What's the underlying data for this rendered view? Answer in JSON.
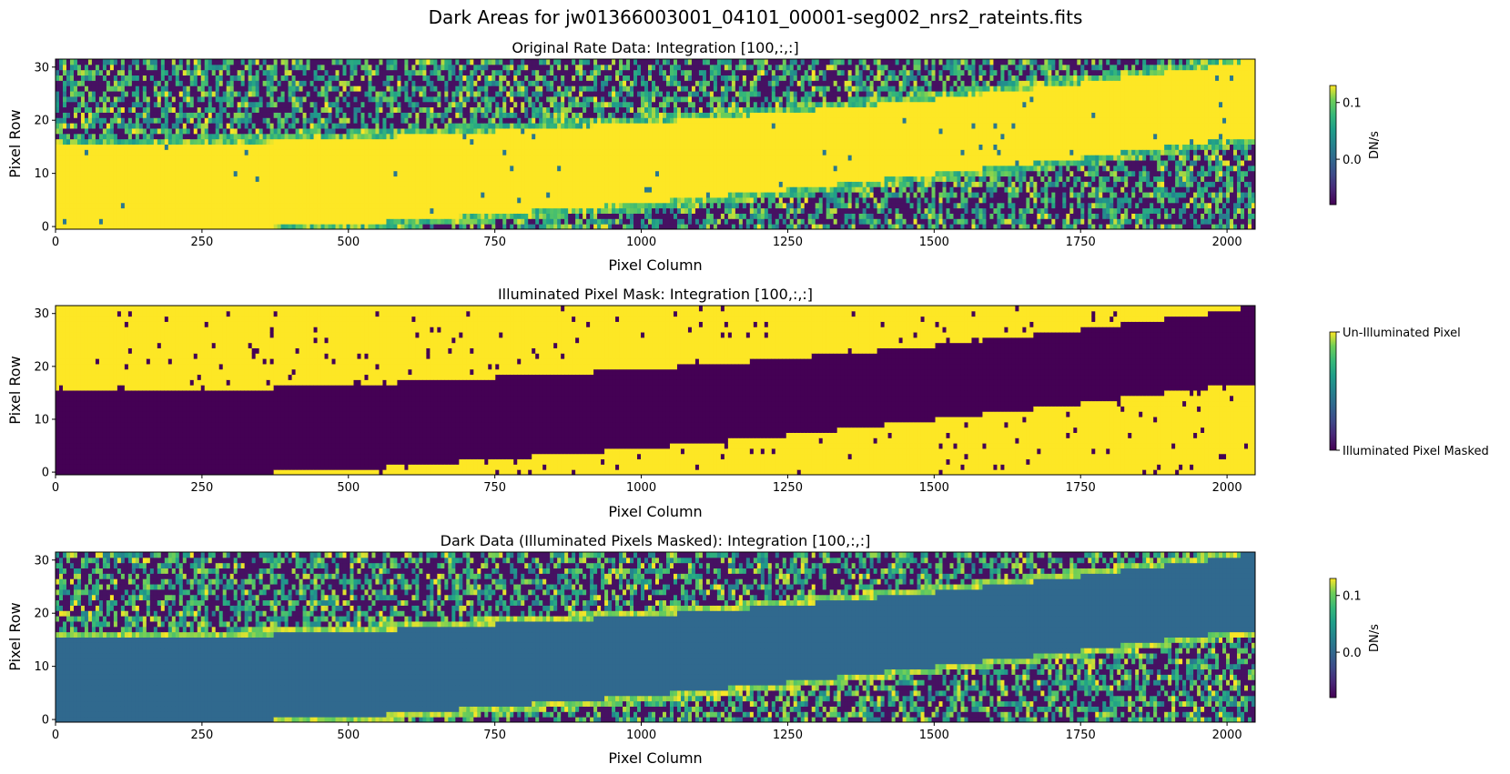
{
  "figure": {
    "suptitle": "Dark Areas for jw01366003001_04101_00001-seg002_nrs2_rateints.fits"
  },
  "chart_data": [
    {
      "type": "heatmap",
      "id": "rate",
      "title": "Original Rate Data: Integration [100,:,:]",
      "xlabel": "Pixel Column",
      "ylabel": "Pixel Row",
      "xlim": [
        0,
        2048
      ],
      "ylim": [
        -0.5,
        31.5
      ],
      "xticks": [
        0,
        250,
        500,
        750,
        1000,
        1250,
        1500,
        1750,
        2000
      ],
      "yticks": [
        0,
        10,
        20,
        30
      ],
      "colormap": "viridis",
      "colorbar": {
        "label": "DN/s",
        "vmin": -0.08,
        "vmax": 0.13,
        "ticks": [
          0.0,
          0.1
        ],
        "tick_labels": [
          "0.0",
          "0.1"
        ]
      },
      "illuminated_band": {
        "description": "bright spectral trace",
        "lower_edge": [
          [
            0,
            -0.5
          ],
          [
            250,
            -0.5
          ],
          [
            500,
            0.5
          ],
          [
            750,
            2.5
          ],
          [
            1000,
            4.5
          ],
          [
            1250,
            7
          ],
          [
            1500,
            10
          ],
          [
            1750,
            13
          ],
          [
            2000,
            16.5
          ],
          [
            2048,
            17
          ]
        ],
        "upper_edge": [
          [
            0,
            15.5
          ],
          [
            250,
            15.5
          ],
          [
            500,
            16.5
          ],
          [
            750,
            18
          ],
          [
            1000,
            19.5
          ],
          [
            1250,
            21.5
          ],
          [
            1500,
            24
          ],
          [
            1750,
            27
          ],
          [
            2000,
            30.5
          ],
          [
            2048,
            31.5
          ]
        ],
        "band_value": 0.13
      }
    },
    {
      "type": "heatmap",
      "id": "mask",
      "title": "Illuminated Pixel Mask: Integration [100,:,:]",
      "xlabel": "Pixel Column",
      "ylabel": "Pixel Row",
      "xlim": [
        0,
        2048
      ],
      "ylim": [
        -0.5,
        31.5
      ],
      "xticks": [
        0,
        250,
        500,
        750,
        1000,
        1250,
        1500,
        1750,
        2000
      ],
      "yticks": [
        0,
        10,
        20,
        30
      ],
      "colormap": "viridis",
      "colorbar": {
        "label": "",
        "vmin": 0,
        "vmax": 1,
        "ticks": [
          1,
          0
        ],
        "tick_labels": [
          "Un-Illuminated Pixel",
          "Illuminated Pixel Masked"
        ]
      },
      "illuminated_band": {
        "description": "masked (value 0) where illuminated, 1 elsewhere",
        "lower_edge": [
          [
            0,
            -0.5
          ],
          [
            250,
            -0.5
          ],
          [
            500,
            0.5
          ],
          [
            750,
            2.5
          ],
          [
            1000,
            4.5
          ],
          [
            1250,
            7
          ],
          [
            1500,
            10
          ],
          [
            1750,
            13
          ],
          [
            2000,
            16.5
          ],
          [
            2048,
            17
          ]
        ],
        "upper_edge": [
          [
            0,
            15.5
          ],
          [
            250,
            15.5
          ],
          [
            500,
            16.5
          ],
          [
            750,
            18
          ],
          [
            1000,
            19.5
          ],
          [
            1250,
            21.5
          ],
          [
            1500,
            24
          ],
          [
            1750,
            27
          ],
          [
            2000,
            30.5
          ],
          [
            2048,
            31.5
          ]
        ],
        "band_value": 0
      }
    },
    {
      "type": "heatmap",
      "id": "dark",
      "title": "Dark Data (Illuminated Pixels Masked): Integration [100,:,:]",
      "xlabel": "Pixel Column",
      "ylabel": "Pixel Row",
      "xlim": [
        0,
        2048
      ],
      "ylim": [
        -0.5,
        31.5
      ],
      "xticks": [
        0,
        250,
        500,
        750,
        1000,
        1250,
        1500,
        1750,
        2000
      ],
      "yticks": [
        0,
        10,
        20,
        30
      ],
      "colormap": "viridis",
      "colorbar": {
        "label": "DN/s",
        "vmin": -0.08,
        "vmax": 0.13,
        "ticks": [
          0.0,
          0.1
        ],
        "tick_labels": [
          "0.0",
          "0.1"
        ]
      },
      "illuminated_band": {
        "description": "masked region shown at 0.0 DN/s",
        "lower_edge": [
          [
            0,
            -0.5
          ],
          [
            250,
            -0.5
          ],
          [
            500,
            0.5
          ],
          [
            750,
            2.5
          ],
          [
            1000,
            4.5
          ],
          [
            1250,
            7
          ],
          [
            1500,
            10
          ],
          [
            1750,
            13
          ],
          [
            2000,
            16.5
          ],
          [
            2048,
            17
          ]
        ],
        "upper_edge": [
          [
            0,
            15.5
          ],
          [
            250,
            15.5
          ],
          [
            500,
            16.5
          ],
          [
            750,
            18
          ],
          [
            1000,
            19.5
          ],
          [
            1250,
            21.5
          ],
          [
            1500,
            24
          ],
          [
            1750,
            27
          ],
          [
            2000,
            30.5
          ],
          [
            2048,
            31.5
          ]
        ],
        "band_value": 0.0
      }
    }
  ]
}
